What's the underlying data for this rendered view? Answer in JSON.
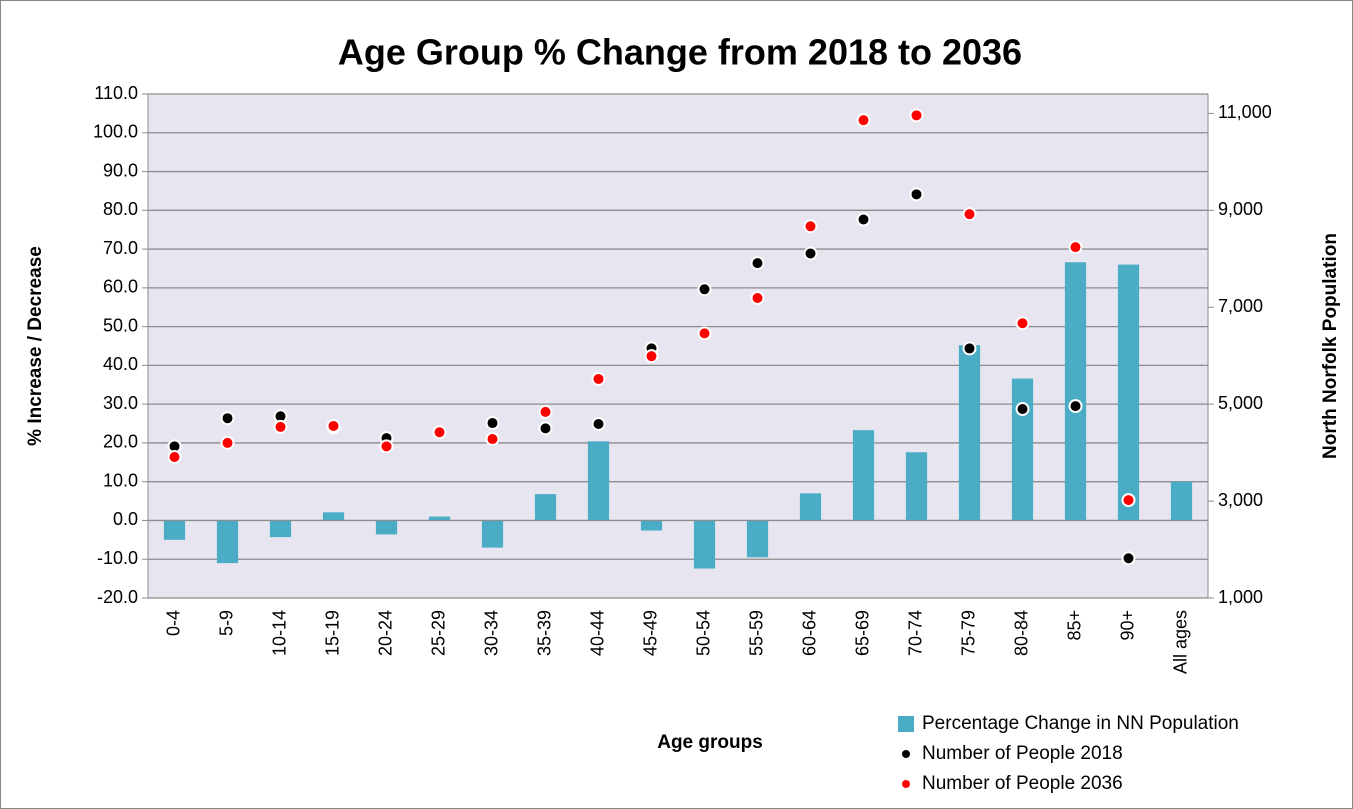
{
  "chart_data": {
    "type": "bar",
    "title": "Age Group % Change from 2018 to 2036",
    "x_label": "Age groups",
    "y_label": "% Increase / Decrease",
    "y2_label": "North Norfolk Population",
    "categories": [
      "0-4",
      "5-9",
      "10-14",
      "15-19",
      "20-24",
      "25-29",
      "30-34",
      "35-39",
      "40-44",
      "45-49",
      "50-54",
      "55-59",
      "60-64",
      "65-69",
      "70-74",
      "75-79",
      "80-84",
      "85+",
      "90+",
      "All ages"
    ],
    "series": [
      {
        "name": "Percentage Change in NN Population",
        "type": "bar",
        "color": "#4bacc6",
        "values": [
          -5.0,
          -11.0,
          -4.3,
          2.1,
          -3.6,
          1.0,
          -7.0,
          6.8,
          20.4,
          -2.6,
          -12.4,
          -9.5,
          7.0,
          23.3,
          17.6,
          45.2,
          36.6,
          66.6,
          66.0,
          10.0
        ]
      },
      {
        "name": "Number of People 2018",
        "type": "scatter",
        "axis": "y2",
        "color": "#000000",
        "values": [
          4130,
          4710,
          4750,
          4520,
          4300,
          4420,
          4610,
          4500,
          4590,
          6150,
          7370,
          7910,
          8110,
          8810,
          9330,
          6150,
          4900,
          4960,
          1820,
          null
        ]
      },
      {
        "name": "Number of People 2036",
        "type": "scatter",
        "axis": "y2",
        "color": "#ff0000",
        "values": [
          3910,
          4200,
          4530,
          4550,
          4130,
          4420,
          4280,
          4840,
          5520,
          5990,
          6460,
          7190,
          8670,
          10860,
          10960,
          8920,
          6670,
          8240,
          3020,
          null
        ]
      }
    ],
    "ylim": [
      -20,
      110
    ],
    "yticks": [
      {
        "value": -20,
        "label": "-20.0"
      },
      {
        "value": -10,
        "label": "-10.0"
      },
      {
        "value": 0,
        "label": "0.0"
      },
      {
        "value": 10,
        "label": "10.0"
      },
      {
        "value": 20,
        "label": "20.0"
      },
      {
        "value": 30,
        "label": "30.0"
      },
      {
        "value": 40,
        "label": "40.0"
      },
      {
        "value": 50,
        "label": "50.0"
      },
      {
        "value": 60,
        "label": "60.0"
      },
      {
        "value": 70,
        "label": "70.0"
      },
      {
        "value": 80,
        "label": "80.0"
      },
      {
        "value": 90,
        "label": "90.0"
      },
      {
        "value": 100,
        "label": "100.0"
      },
      {
        "value": 110,
        "label": "110.0"
      }
    ],
    "y2lim": [
      1000,
      11400
    ],
    "y2ticks": [
      {
        "value": 1000,
        "label": "1,000"
      },
      {
        "value": 3000,
        "label": "3,000"
      },
      {
        "value": 5000,
        "label": "5,000"
      },
      {
        "value": 7000,
        "label": "7,000"
      },
      {
        "value": 9000,
        "label": "9,000"
      },
      {
        "value": 11000,
        "label": "11,000"
      }
    ],
    "grid": true,
    "legend": "bottom-right"
  }
}
